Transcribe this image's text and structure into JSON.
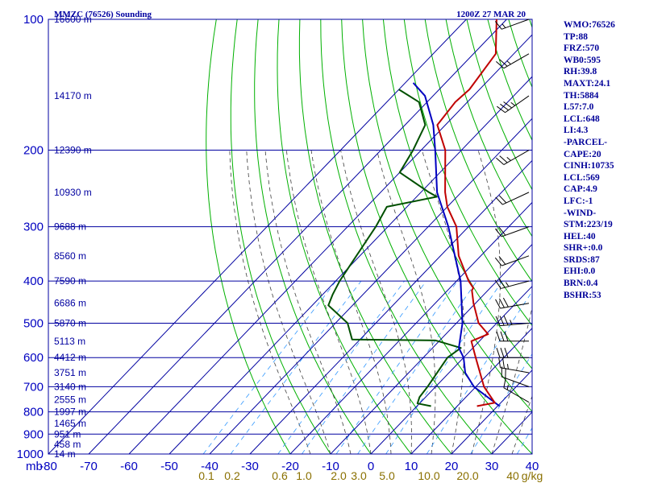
{
  "header": {
    "station": "MMZC (76526) Sounding",
    "time": "1200Z 27 MAR 20"
  },
  "indices": [
    "WMO:76526",
    "TP:88",
    "FRZ:570",
    "WB0:595",
    "RH:39.8",
    "MAXT:24.1",
    "TH:5884",
    "L57:7.0",
    "LCL:648",
    "LI:4.3",
    "-PARCEL-",
    "CAPE:20",
    "CINH:10735",
    "LCL:569",
    "CAP:4.9",
    "LFC:-1",
    "-WIND-",
    "STM:223/19",
    "HEL:40",
    "SHR+:0.0",
    "SRDS:87",
    "EHI:0.0",
    "BRN:0.4",
    "BSHR:53"
  ],
  "colors": {
    "grid": "#0000a0",
    "dry_adiabat": "#00b000",
    "moist_adiabat": "#404040",
    "mixing_ratio": "#3399ff",
    "temperature": "#c00000",
    "dewpoint": "#005000",
    "parcel": "#0000c0",
    "wind_barb": "#000000"
  },
  "chart_data": {
    "type": "skew-t log-p",
    "pressure_unit_label": "mb",
    "temperature_unit": "C",
    "mixing_ratio_unit": "g/kg",
    "pressure_range": [
      100,
      1000
    ],
    "temperature_range": [
      -80,
      40
    ],
    "pressure_levels": [
      100,
      200,
      300,
      400,
      500,
      600,
      700,
      800,
      900,
      1000
    ],
    "pressure_tick_labels": [
      "100",
      "200",
      "300",
      "400",
      "500",
      "600",
      "700",
      "800",
      "900",
      "1000"
    ],
    "temperature_ticks": [
      -80,
      -70,
      -60,
      -50,
      -40,
      -30,
      -20,
      -10,
      0,
      10,
      20,
      30,
      40
    ],
    "temperature_tick_labels": [
      "-80",
      "-70",
      "-60",
      "-50",
      "-40",
      "-30",
      "-20",
      "-10",
      "0",
      "10",
      "20",
      "30",
      "40"
    ],
    "mixing_ratio_labels": [
      "0.1",
      "0.2",
      "0.6",
      "1.0",
      "2.0",
      "3.0",
      "5.0",
      "10.0",
      "20.0",
      "40",
      "g/kg"
    ],
    "mixing_ratio_values": [
      0.1,
      0.2,
      0.6,
      1.0,
      2.0,
      3.0,
      5.0,
      10.0,
      20.0,
      40.0
    ],
    "height_labels": [
      {
        "p": 100,
        "label": "16600 m"
      },
      {
        "p": 150,
        "label": "14170 m"
      },
      {
        "p": 200,
        "label": "12390 m"
      },
      {
        "p": 250,
        "label": "10930 m"
      },
      {
        "p": 300,
        "label": "9688 m"
      },
      {
        "p": 350,
        "label": "8560 m"
      },
      {
        "p": 400,
        "label": "7590 m"
      },
      {
        "p": 450,
        "label": "6686 m"
      },
      {
        "p": 500,
        "label": "5870 m"
      },
      {
        "p": 550,
        "label": "5113 m"
      },
      {
        "p": 600,
        "label": "4412 m"
      },
      {
        "p": 650,
        "label": "3751 m"
      },
      {
        "p": 700,
        "label": "3140 m"
      },
      {
        "p": 750,
        "label": "2555 m"
      },
      {
        "p": 800,
        "label": "1997 m"
      },
      {
        "p": 850,
        "label": "1465 m"
      },
      {
        "p": 900,
        "label": "951 m"
      },
      {
        "p": 950,
        "label": "458 m"
      },
      {
        "p": 1000,
        "label": "14 m"
      }
    ],
    "temperature_profile": [
      {
        "p": 776,
        "t": 14.9
      },
      {
        "p": 762,
        "t": 18.5
      },
      {
        "p": 700,
        "t": 12.0
      },
      {
        "p": 600,
        "t": 3.0
      },
      {
        "p": 550,
        "t": -2.0
      },
      {
        "p": 530,
        "t": 0.5
      },
      {
        "p": 500,
        "t": -4.5
      },
      {
        "p": 450,
        "t": -10.5
      },
      {
        "p": 420,
        "t": -14.0
      },
      {
        "p": 415,
        "t": -14.2
      },
      {
        "p": 400,
        "t": -17.0
      },
      {
        "p": 350,
        "t": -25.5
      },
      {
        "p": 300,
        "t": -33.0
      },
      {
        "p": 270,
        "t": -40.0
      },
      {
        "p": 250,
        "t": -44.0
      },
      {
        "p": 200,
        "t": -54.0
      },
      {
        "p": 175,
        "t": -62.0
      },
      {
        "p": 155,
        "t": -63.0
      },
      {
        "p": 145,
        "t": -62.5
      },
      {
        "p": 120,
        "t": -64.5
      },
      {
        "p": 100,
        "t": -72.5
      }
    ],
    "dewpoint_profile": [
      {
        "p": 776,
        "t": 3.5
      },
      {
        "p": 765,
        "t": -0.5
      },
      {
        "p": 740,
        "t": -1.5
      },
      {
        "p": 700,
        "t": -2.0
      },
      {
        "p": 600,
        "t": -4.0
      },
      {
        "p": 570,
        "t": -3.0
      },
      {
        "p": 548,
        "t": -11.0
      },
      {
        "p": 545,
        "t": -32.0
      },
      {
        "p": 500,
        "t": -37.0
      },
      {
        "p": 455,
        "t": -46.0
      },
      {
        "p": 430,
        "t": -47.5
      },
      {
        "p": 400,
        "t": -49.0
      },
      {
        "p": 300,
        "t": -53.0
      },
      {
        "p": 270,
        "t": -55.0
      },
      {
        "p": 256,
        "t": -45.0
      },
      {
        "p": 250,
        "t": -48.0
      },
      {
        "p": 225,
        "t": -60.0
      },
      {
        "p": 200,
        "t": -62.0
      },
      {
        "p": 175,
        "t": -65.0
      },
      {
        "p": 155,
        "t": -72.0
      },
      {
        "p": 145,
        "t": -80.0
      }
    ],
    "parcel_profile": [
      {
        "p": 776,
        "t": 20.5
      },
      {
        "p": 700,
        "t": 9.5
      },
      {
        "p": 650,
        "t": 4.0
      },
      {
        "p": 600,
        "t": 0.0
      },
      {
        "p": 570,
        "t": -3.5
      },
      {
        "p": 500,
        "t": -8.5
      },
      {
        "p": 400,
        "t": -19.0
      },
      {
        "p": 300,
        "t": -35.0
      },
      {
        "p": 250,
        "t": -46.0
      },
      {
        "p": 200,
        "t": -56.5
      },
      {
        "p": 175,
        "t": -63.0
      },
      {
        "p": 150,
        "t": -72.0
      },
      {
        "p": 140,
        "t": -78.0
      }
    ],
    "wind_profile": [
      {
        "p": 760,
        "dir": 300,
        "spd": 15
      },
      {
        "p": 700,
        "dir": 290,
        "spd": 20
      },
      {
        "p": 650,
        "dir": 280,
        "spd": 25
      },
      {
        "p": 600,
        "dir": 270,
        "spd": 30
      },
      {
        "p": 550,
        "dir": 270,
        "spd": 30
      },
      {
        "p": 500,
        "dir": 265,
        "spd": 35
      },
      {
        "p": 450,
        "dir": 260,
        "spd": 30
      },
      {
        "p": 400,
        "dir": 255,
        "spd": 25
      },
      {
        "p": 350,
        "dir": 250,
        "spd": 20
      },
      {
        "p": 300,
        "dir": 250,
        "spd": 20
      },
      {
        "p": 250,
        "dir": 245,
        "spd": 20
      },
      {
        "p": 200,
        "dir": 240,
        "spd": 25
      },
      {
        "p": 150,
        "dir": 235,
        "spd": 35
      },
      {
        "p": 120,
        "dir": 240,
        "spd": 25
      },
      {
        "p": 100,
        "dir": 250,
        "spd": 15
      }
    ]
  }
}
